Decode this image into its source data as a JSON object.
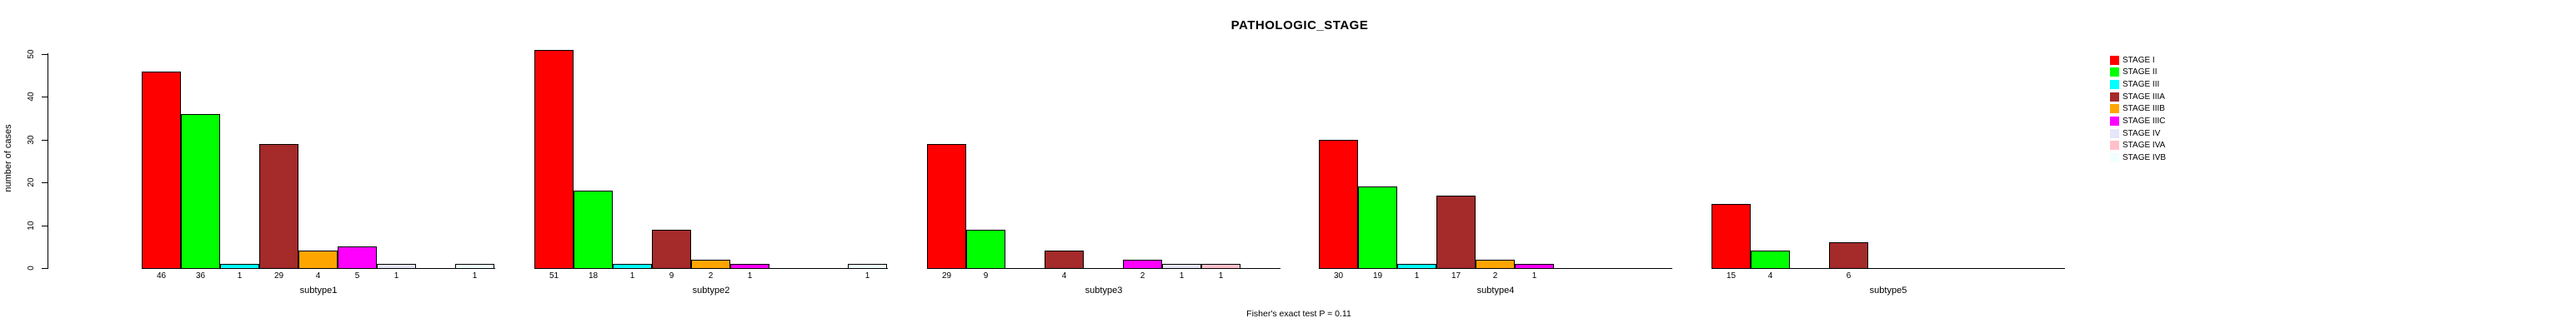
{
  "chart_data": {
    "type": "bar",
    "title": "PATHOLOGIC_STAGE",
    "ylabel": "number of cases",
    "xlabel": "",
    "footnote": "Fisher's exact test P = 0.11",
    "categories": [
      "subtype1",
      "subtype2",
      "subtype3",
      "subtype4",
      "subtype5"
    ],
    "ylim": [
      0,
      50
    ],
    "yticks": [
      0,
      10,
      20,
      30,
      40,
      50
    ],
    "grid": false,
    "legend_position": "right",
    "bar_border_color": "#000000",
    "series": [
      {
        "name": "STAGE I",
        "color": "#FF0000",
        "values": [
          46,
          51,
          29,
          30,
          15
        ]
      },
      {
        "name": "STAGE II",
        "color": "#00FF00",
        "values": [
          36,
          18,
          9,
          19,
          4
        ]
      },
      {
        "name": "STAGE III",
        "color": "#00FFFF",
        "values": [
          1,
          1,
          0,
          1,
          0
        ]
      },
      {
        "name": "STAGE IIIA",
        "color": "#A52A2A",
        "values": [
          29,
          9,
          4,
          17,
          6
        ]
      },
      {
        "name": "STAGE IIIB",
        "color": "#FFA500",
        "values": [
          4,
          2,
          0,
          2,
          0
        ]
      },
      {
        "name": "STAGE IIIC",
        "color": "#FF00FF",
        "values": [
          5,
          1,
          2,
          1,
          0
        ]
      },
      {
        "name": "STAGE IV",
        "color": "#E6E6FA",
        "values": [
          1,
          0,
          1,
          0,
          0
        ]
      },
      {
        "name": "STAGE IVA",
        "color": "#FFC0CB",
        "values": [
          0,
          0,
          1,
          0,
          0
        ]
      },
      {
        "name": "STAGE IVB",
        "color": "#F0FFFF",
        "values": [
          1,
          1,
          0,
          0,
          0
        ]
      }
    ],
    "bar_value_labels_shown_for_nonzero_only": true
  }
}
